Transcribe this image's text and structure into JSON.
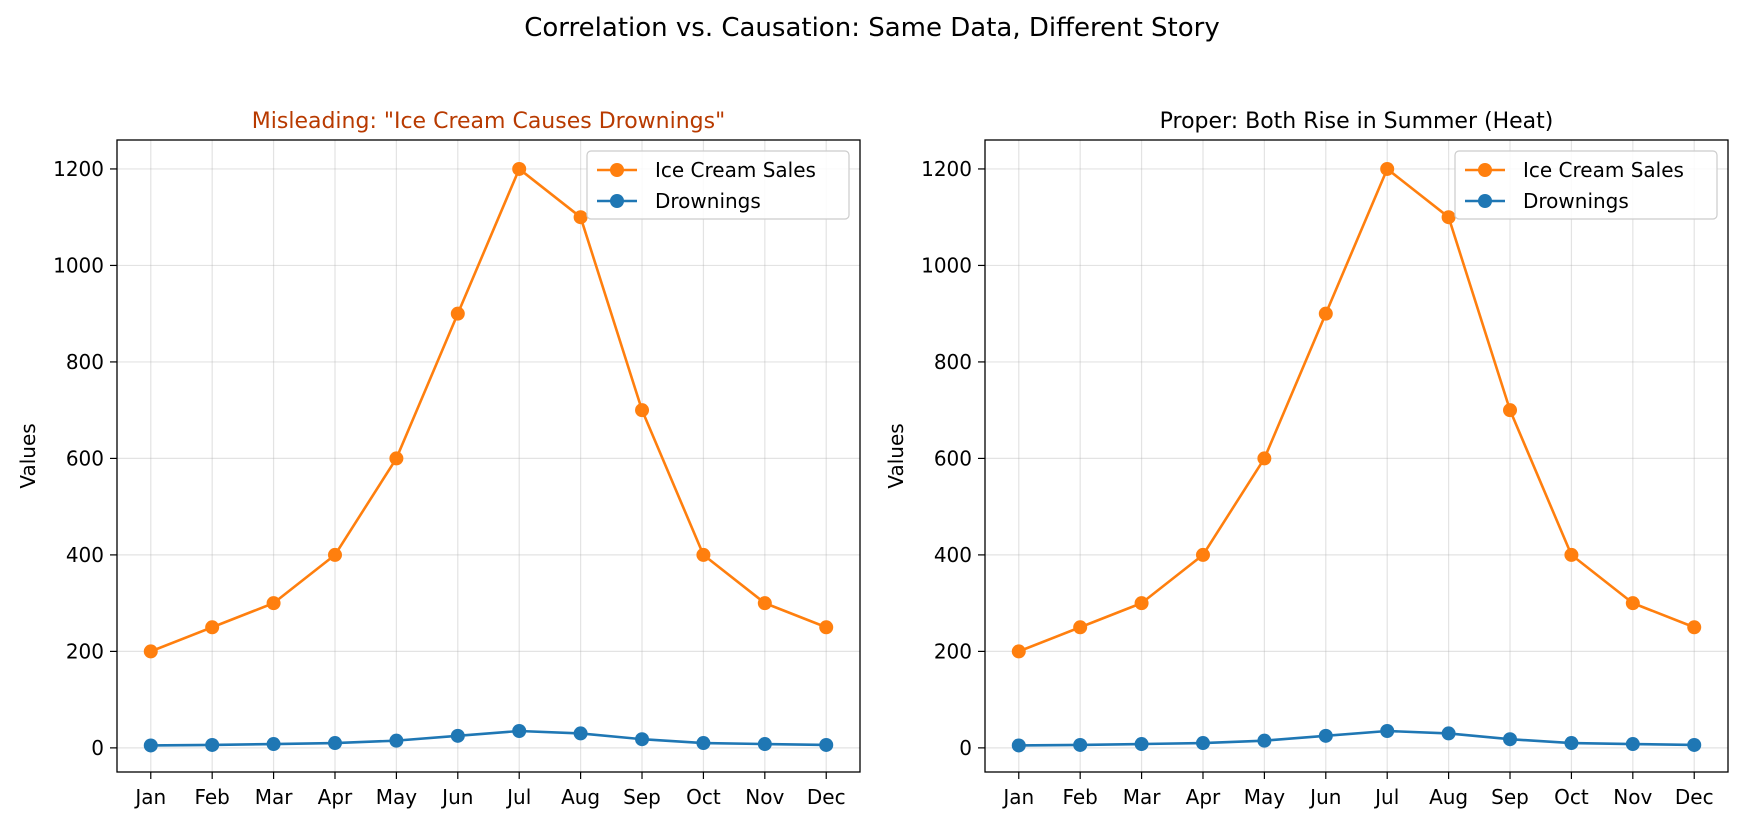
{
  "figure": {
    "suptitle": "Correlation vs. Causation: Same Data, Different Story"
  },
  "chart_data": [
    {
      "type": "line",
      "title": "Misleading: \"Ice Cream Causes Drownings\"",
      "title_color": "#b83a00",
      "xlabel": "",
      "ylabel": "Values",
      "categories": [
        "Jan",
        "Feb",
        "Mar",
        "Apr",
        "May",
        "Jun",
        "Jul",
        "Aug",
        "Sep",
        "Oct",
        "Nov",
        "Dec"
      ],
      "ylim": [
        -50,
        1260
      ],
      "yticks": [
        0,
        200,
        400,
        600,
        800,
        1000,
        1200
      ],
      "grid": true,
      "legend": "top-right",
      "series": [
        {
          "name": "Ice Cream Sales",
          "color": "#ff7f0e",
          "marker": "circle",
          "values": [
            200,
            250,
            300,
            400,
            600,
            900,
            1200,
            1100,
            700,
            400,
            300,
            250
          ]
        },
        {
          "name": "Drownings",
          "color": "#1f77b4",
          "marker": "circle",
          "values": [
            5,
            6,
            8,
            10,
            15,
            25,
            35,
            30,
            18,
            10,
            8,
            6
          ]
        }
      ]
    },
    {
      "type": "line",
      "title": "Proper: Both Rise in Summer (Heat)",
      "title_color": "#000000",
      "xlabel": "",
      "ylabel": "Values",
      "categories": [
        "Jan",
        "Feb",
        "Mar",
        "Apr",
        "May",
        "Jun",
        "Jul",
        "Aug",
        "Sep",
        "Oct",
        "Nov",
        "Dec"
      ],
      "ylim": [
        -50,
        1260
      ],
      "yticks": [
        0,
        200,
        400,
        600,
        800,
        1000,
        1200
      ],
      "grid": true,
      "legend": "top-right",
      "series": [
        {
          "name": "Ice Cream Sales",
          "color": "#ff7f0e",
          "marker": "circle",
          "values": [
            200,
            250,
            300,
            400,
            600,
            900,
            1200,
            1100,
            700,
            400,
            300,
            250
          ]
        },
        {
          "name": "Drownings",
          "color": "#1f77b4",
          "marker": "circle",
          "values": [
            5,
            6,
            8,
            10,
            15,
            25,
            35,
            30,
            18,
            10,
            8,
            6
          ]
        }
      ]
    }
  ]
}
